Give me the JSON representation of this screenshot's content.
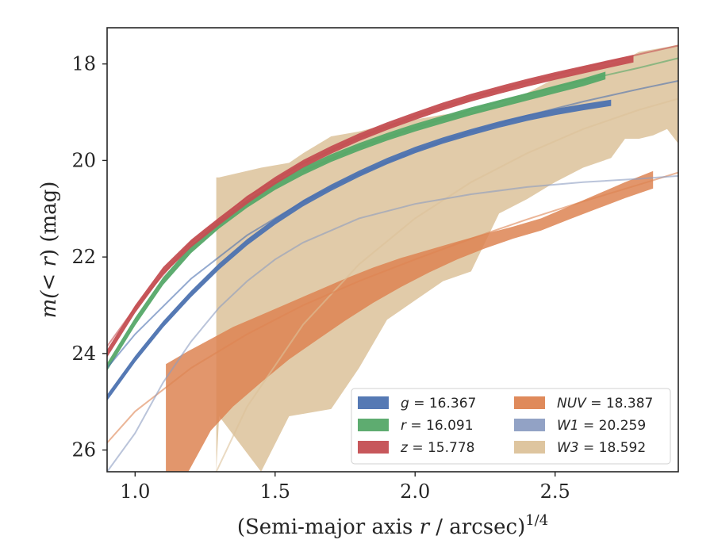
{
  "chart_data": {
    "type": "line",
    "xlabel_main": "(Semi-major axis ",
    "xlabel_var": "r",
    "xlabel_tail": " / arcsec)",
    "xlabel_exp": "1/4",
    "ylabel_pre": "m(",
    "ylabel_mid": "< r",
    "ylabel_post": ") (mag)",
    "xlim": [
      0.9,
      2.94
    ],
    "ylim": [
      26.45,
      17.25
    ],
    "y_inverted": true,
    "x_ticks": [
      1.0,
      1.5,
      2.0,
      2.5
    ],
    "x_tick_labels": [
      "1.0",
      "1.5",
      "2.0",
      "2.5"
    ],
    "y_ticks": [
      18,
      20,
      22,
      24,
      26
    ],
    "y_tick_labels": [
      "18",
      "20",
      "22",
      "24",
      "26"
    ],
    "grid": false,
    "legend_placement": "lower-right",
    "series": [
      {
        "key": "g",
        "name_var": "g",
        "name_value": " = 16.367",
        "color": "#4c72b0",
        "band_x": [
          0.9,
          1.0,
          1.1,
          1.2,
          1.3,
          1.4,
          1.5,
          1.6,
          1.7,
          1.8,
          1.9,
          2.0,
          2.1,
          2.2,
          2.3,
          2.4,
          2.5,
          2.6,
          2.7
        ],
        "band_upper": [
          24.85,
          24.05,
          23.33,
          22.7,
          22.13,
          21.63,
          21.2,
          20.82,
          20.5,
          20.21,
          19.95,
          19.72,
          19.52,
          19.35,
          19.19,
          19.05,
          18.93,
          18.83,
          18.74
        ],
        "band_lower": [
          24.98,
          24.18,
          23.46,
          22.83,
          22.26,
          21.76,
          21.33,
          20.95,
          20.63,
          20.34,
          20.08,
          19.85,
          19.65,
          19.48,
          19.32,
          19.18,
          19.06,
          18.96,
          18.87
        ],
        "model_x": [
          0.9,
          1.0,
          1.2,
          1.4,
          1.6,
          1.8,
          2.0,
          2.2,
          2.4,
          2.6,
          2.8,
          2.94
        ],
        "model_y": [
          24.3,
          23.6,
          22.45,
          21.55,
          20.85,
          20.28,
          19.8,
          19.4,
          19.07,
          18.78,
          18.52,
          18.35
        ]
      },
      {
        "key": "r",
        "name_var": "r",
        "name_value": " = 16.091",
        "color": "#55a868",
        "band_x": [
          0.9,
          1.0,
          1.1,
          1.2,
          1.3,
          1.4,
          1.5,
          1.6,
          1.7,
          1.8,
          1.9,
          2.0,
          2.1,
          2.2,
          2.3,
          2.4,
          2.5,
          2.6,
          2.68
        ],
        "band_upper": [
          24.2,
          23.26,
          22.42,
          21.76,
          21.25,
          20.82,
          20.45,
          20.14,
          19.87,
          19.64,
          19.43,
          19.24,
          19.07,
          18.9,
          18.75,
          18.6,
          18.45,
          18.3,
          18.16
        ],
        "band_lower": [
          24.36,
          23.42,
          22.58,
          21.92,
          21.41,
          20.98,
          20.61,
          20.3,
          20.03,
          19.8,
          19.59,
          19.4,
          19.23,
          19.06,
          18.91,
          18.76,
          18.61,
          18.46,
          18.32
        ],
        "model_x": [
          1.6,
          1.8,
          2.0,
          2.2,
          2.4,
          2.6,
          2.8,
          2.94
        ],
        "model_y": [
          20.22,
          19.72,
          19.32,
          18.95,
          18.62,
          18.34,
          18.08,
          17.88
        ]
      },
      {
        "key": "z",
        "name_var": "z",
        "name_value": " = 15.778",
        "color": "#c44e52",
        "band_x": [
          0.9,
          1.0,
          1.1,
          1.2,
          1.3,
          1.4,
          1.5,
          1.6,
          1.7,
          1.8,
          1.9,
          2.0,
          2.1,
          2.2,
          2.3,
          2.4,
          2.5,
          2.6,
          2.7,
          2.78
        ],
        "band_upper": [
          23.92,
          23.0,
          22.21,
          21.64,
          21.18,
          20.74,
          20.34,
          19.99,
          19.7,
          19.44,
          19.21,
          19.0,
          18.8,
          18.62,
          18.46,
          18.31,
          18.17,
          18.04,
          17.91,
          17.81
        ],
        "band_lower": [
          24.08,
          23.16,
          22.37,
          21.8,
          21.34,
          20.9,
          20.5,
          20.15,
          19.86,
          19.6,
          19.37,
          19.16,
          18.96,
          18.78,
          18.62,
          18.47,
          18.33,
          18.2,
          18.07,
          17.97
        ],
        "model_x": [
          0.9,
          1.0,
          1.2,
          1.4,
          1.6,
          1.8,
          2.0,
          2.2,
          2.4,
          2.6,
          2.8,
          2.94
        ],
        "model_y": [
          23.85,
          23.05,
          21.7,
          20.75,
          20.06,
          19.52,
          19.08,
          18.7,
          18.38,
          18.08,
          17.8,
          17.62
        ]
      },
      {
        "key": "NUV",
        "name_var": "NUV",
        "name_value": " = 18.387",
        "color": "#dd8452",
        "band_x": [
          1.11,
          1.19,
          1.27,
          1.35,
          1.45,
          1.55,
          1.65,
          1.75,
          1.85,
          1.95,
          2.05,
          2.15,
          2.25,
          2.35,
          2.45,
          2.55,
          2.65,
          2.75,
          2.85
        ],
        "band_upper": [
          24.22,
          23.95,
          23.7,
          23.45,
          23.2,
          22.95,
          22.7,
          22.45,
          22.22,
          22.02,
          21.85,
          21.68,
          21.52,
          21.37,
          21.2,
          20.95,
          20.7,
          20.45,
          20.22
        ],
        "band_lower": [
          26.45,
          26.45,
          25.6,
          25.1,
          24.6,
          24.12,
          23.72,
          23.32,
          22.95,
          22.62,
          22.32,
          22.05,
          21.82,
          21.62,
          21.45,
          21.22,
          21.0,
          20.78,
          20.58
        ],
        "model_x": [
          0.9,
          1.0,
          1.2,
          1.4,
          1.6,
          1.8,
          2.0,
          2.2,
          2.4,
          2.6,
          2.8,
          2.94
        ],
        "model_y": [
          25.85,
          25.2,
          24.3,
          23.6,
          23.0,
          22.5,
          22.05,
          21.62,
          21.22,
          20.85,
          20.5,
          20.25
        ]
      },
      {
        "key": "W1",
        "name_var": "W1",
        "name_value": " = 20.259",
        "color": "#8c9dc2",
        "band_x": [],
        "band_upper": [],
        "band_lower": [],
        "model_x": [
          0.9,
          1.0,
          1.1,
          1.2,
          1.3,
          1.4,
          1.5,
          1.6,
          1.8,
          2.0,
          2.2,
          2.4,
          2.6,
          2.8,
          2.94
        ],
        "model_y": [
          26.45,
          25.65,
          24.6,
          23.75,
          23.05,
          22.5,
          22.05,
          21.7,
          21.2,
          20.9,
          20.7,
          20.55,
          20.45,
          20.38,
          20.32
        ]
      },
      {
        "key": "W3",
        "name_var": "W3",
        "name_value": " = 18.592",
        "color": "#dcc29a",
        "band_x": [
          1.29,
          1.3,
          1.45,
          1.55,
          1.6,
          1.7,
          1.8,
          1.9,
          2.0,
          2.1,
          2.2,
          2.3,
          2.4,
          2.5,
          2.6,
          2.7,
          2.75,
          2.8,
          2.85,
          2.9,
          2.94
        ],
        "band_upper": [
          20.35,
          20.35,
          20.15,
          20.05,
          19.85,
          19.5,
          19.4,
          19.25,
          19.15,
          19.05,
          19.0,
          18.85,
          18.6,
          18.3,
          18.1,
          18.0,
          17.9,
          17.75,
          17.7,
          17.65,
          17.6
        ],
        "band_lower": [
          26.45,
          25.3,
          26.45,
          25.3,
          25.25,
          25.15,
          24.3,
          23.3,
          22.9,
          22.5,
          22.3,
          21.1,
          20.8,
          20.45,
          20.15,
          19.95,
          19.55,
          19.55,
          19.48,
          19.35,
          19.65
        ],
        "model_x": [
          1.29,
          1.4,
          1.6,
          1.8,
          2.0,
          2.2,
          2.4,
          2.6,
          2.8,
          2.94
        ],
        "model_y": [
          26.45,
          25.1,
          23.4,
          22.15,
          21.2,
          20.45,
          19.85,
          19.35,
          18.95,
          18.72
        ]
      }
    ]
  }
}
